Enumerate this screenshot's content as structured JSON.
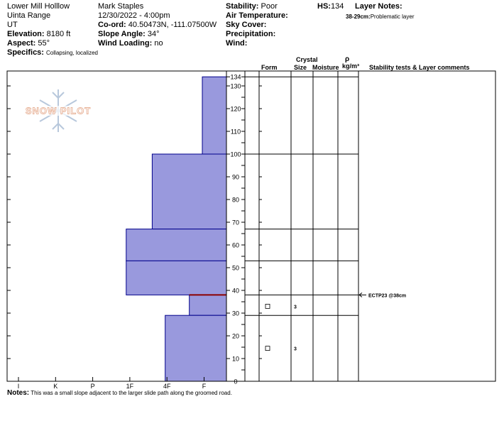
{
  "header": {
    "location": "Lower Mill Holllow",
    "range": "Uinta Range",
    "state": "UT",
    "elevation_label": "Elevation:",
    "elevation": "8180 ft",
    "aspect_label": "Aspect:",
    "aspect": "55°",
    "specifics_label": "Specifics:",
    "specifics": "Collapsing, localized",
    "observer": "Mark Staples",
    "datetime": "12/30/2022 - 4:00pm",
    "coord_label": "Co-ord:",
    "coord": "40.50473N, -111.07500W",
    "slope_label": "Slope Angle:",
    "slope": "34°",
    "wind_loading_label": "Wind Loading:",
    "wind_loading": "no",
    "stability_label": "Stability:",
    "stability": "Poor",
    "air_temp_label": "Air Temperature:",
    "sky_cover_label": "Sky Cover:",
    "precip_label": "Precipitation:",
    "wind_label": "Wind:",
    "hs_label": "HS:",
    "hs": "134",
    "layer_notes_label": "Layer Notes:",
    "layer_note_depth": "38-29cm:",
    "layer_note_text": "Problematic layer"
  },
  "logo_text": "SNOW PILOT",
  "columns": {
    "crystal": "Crystal",
    "form": "Form",
    "size": "Size",
    "moisture": "Moisture",
    "rho": "ρ",
    "density_unit": "kg/m³",
    "stability": "Stability tests & Layer comments"
  },
  "notes_label": "Notes:",
  "notes": "This was a small slope adjacent to the larger slide path along the groomed road.",
  "colors": {
    "hardness_fill": "#9999dd",
    "hardness_stroke": "#00008b",
    "problem_layer": "#8b0000"
  },
  "chart_data": {
    "type": "bar",
    "orientation": "horizontal",
    "description_axis": "snow depth (cm)",
    "ylim": [
      0,
      134
    ],
    "yticks": [
      0,
      10,
      20,
      30,
      40,
      50,
      60,
      70,
      80,
      90,
      100,
      110,
      120,
      130,
      134
    ],
    "hardness_ticks": [
      "I",
      "K",
      "P",
      "1F",
      "4F",
      "F"
    ],
    "hardness_scale_max": 6,
    "layers": [
      {
        "top": 134,
        "bottom": 100,
        "hardness": "F",
        "hardness_value": 0.65
      },
      {
        "top": 100,
        "bottom": 67,
        "hardness": "4F",
        "hardness_value": 2.0
      },
      {
        "top": 67,
        "bottom": 53,
        "hardness": "1F",
        "hardness_value": 2.7
      },
      {
        "top": 53,
        "bottom": 38,
        "hardness": "1F",
        "hardness_value": 2.7
      },
      {
        "top": 38,
        "bottom": 29,
        "hardness": "F",
        "hardness_value": 1.0
      },
      {
        "top": 29,
        "bottom": 0,
        "hardness": "4F",
        "hardness_value": 1.65
      }
    ],
    "problem_layer_depth": 38,
    "crystal_rows": [
      {
        "depth": 33,
        "form": "square",
        "size": "3"
      },
      {
        "depth": 14.5,
        "form": "square",
        "size": "3"
      }
    ],
    "stability_tests": [
      {
        "depth": 38,
        "label": "ECTP23 @38cm"
      }
    ]
  }
}
